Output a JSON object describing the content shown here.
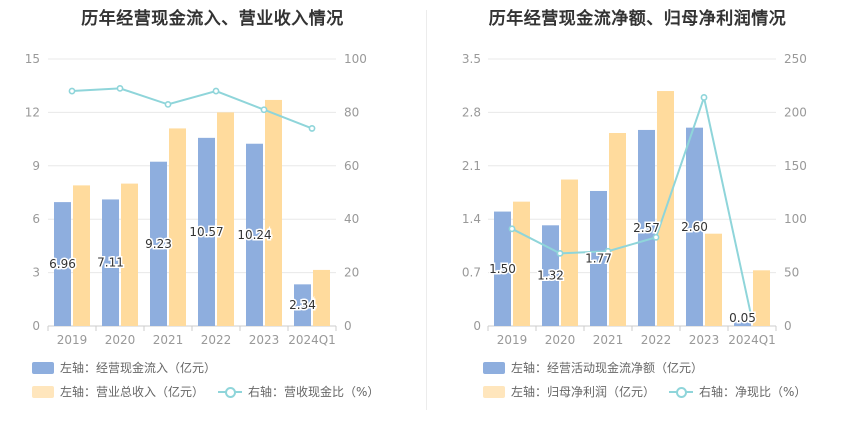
{
  "charts": [
    {
      "title": "历年经营现金流入、营业收入情况",
      "legend": {
        "bar1": "左轴：经营现金流入（亿元）",
        "bar2": "左轴：营业总收入（亿元）",
        "line": "右轴：营收现金比（%）"
      }
    },
    {
      "title": "历年经营现金流净额、归母净利润情况",
      "legend": {
        "bar1": "左轴：经营活动现金流净额（亿元）",
        "bar2": "左轴：归母净利润（亿元）",
        "line": "右轴：净现比（%）"
      }
    }
  ],
  "colors": {
    "bar1": "#8eaede",
    "bar2": "#ffdb9d",
    "line": "#8fd5da",
    "grid": "#e8e8e8",
    "axis_text": "#999999"
  },
  "chart_data": [
    {
      "type": "bar",
      "title": "历年经营现金流入、营业收入情况",
      "categories": [
        "2019",
        "2020",
        "2021",
        "2022",
        "2023",
        "2024Q1"
      ],
      "y_left": {
        "ticks": [
          "0",
          "3",
          "6",
          "9",
          "12",
          "15"
        ],
        "range": [
          0,
          15
        ]
      },
      "y_right": {
        "ticks": [
          "0",
          "20",
          "40",
          "60",
          "80",
          "100"
        ],
        "range": [
          0,
          100
        ]
      },
      "series": [
        {
          "name": "左轴：经营现金流入（亿元）",
          "axis": "left",
          "kind": "bar",
          "values": [
            6.96,
            7.11,
            9.23,
            10.57,
            10.24,
            2.34
          ],
          "labels": [
            "6.96",
            "7.11",
            "9.23",
            "10.57",
            "10.24",
            "2.34"
          ]
        },
        {
          "name": "左轴：营业总收入（亿元）",
          "axis": "left",
          "kind": "bar",
          "values": [
            7.9,
            8.0,
            11.1,
            12.0,
            12.7,
            3.15
          ]
        },
        {
          "name": "右轴：营收现金比（%）",
          "axis": "right",
          "kind": "line",
          "values": [
            88,
            89,
            83,
            88,
            81,
            74
          ]
        }
      ]
    },
    {
      "type": "bar",
      "title": "历年经营现金流净额、归母净利润情况",
      "categories": [
        "2019",
        "2020",
        "2021",
        "2022",
        "2023",
        "2024Q1"
      ],
      "y_left": {
        "ticks": [
          "0",
          "0.7",
          "1.4",
          "2.1",
          "2.8",
          "3.5"
        ],
        "range": [
          0,
          3.5
        ]
      },
      "y_right": {
        "ticks": [
          "0",
          "50",
          "100",
          "150",
          "200",
          "250"
        ],
        "range": [
          0,
          250
        ]
      },
      "series": [
        {
          "name": "左轴：经营活动现金流净额（亿元）",
          "axis": "left",
          "kind": "bar",
          "values": [
            1.5,
            1.32,
            1.77,
            2.57,
            2.6,
            0.05
          ],
          "labels": [
            "1.50",
            "1.32",
            "1.77",
            "2.57",
            "2.60",
            "0.05"
          ]
        },
        {
          "name": "左轴：归母净利润（亿元）",
          "axis": "left",
          "kind": "bar",
          "values": [
            1.63,
            1.92,
            2.53,
            3.08,
            1.21,
            0.73
          ]
        },
        {
          "name": "右轴：净现比（%）",
          "axis": "right",
          "kind": "line",
          "values": [
            91,
            68,
            70,
            83,
            214,
            6
          ]
        }
      ]
    }
  ]
}
